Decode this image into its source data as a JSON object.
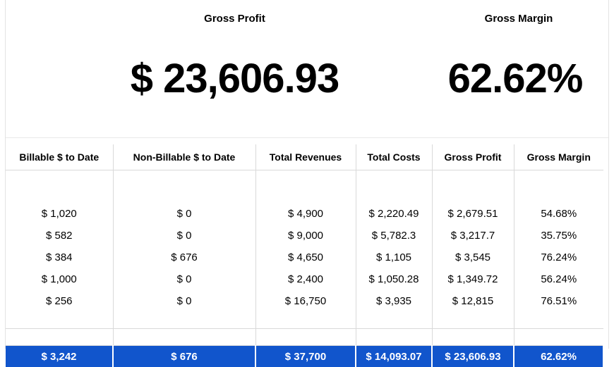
{
  "summary": {
    "gross_profit_title": "Gross Profit",
    "gross_profit_value": "$ 23,606.93",
    "gross_margin_title": "Gross Margin",
    "gross_margin_value": "62.62%"
  },
  "table": {
    "headers": [
      "Billable $ to Date",
      "Non-Billable $ to Date",
      "Total Revenues",
      "Total Costs",
      "Gross Profit",
      "Gross Margin"
    ],
    "rows": [
      [
        "$ 1,020",
        "$ 0",
        "$ 4,900",
        "$ 2,220.49",
        "$ 2,679.51",
        "54.68%"
      ],
      [
        "$ 582",
        "$ 0",
        "$ 9,000",
        "$ 5,782.3",
        "$ 3,217.7",
        "35.75%"
      ],
      [
        "$ 384",
        "$ 676",
        "$ 4,650",
        "$ 1,105",
        "$ 3,545",
        "76.24%"
      ],
      [
        "$ 1,000",
        "$ 0",
        "$ 2,400",
        "$ 1,050.28",
        "$ 1,349.72",
        "56.24%"
      ],
      [
        "$ 256",
        "$ 0",
        "$ 16,750",
        "$ 3,935",
        "$ 12,815",
        "76.51%"
      ]
    ],
    "totals": [
      "$ 3,242",
      "$ 676",
      "$ 37,700",
      "$ 14,093.07",
      "$ 23,606.93",
      "62.62%"
    ],
    "totals_color": "#1155cc"
  }
}
